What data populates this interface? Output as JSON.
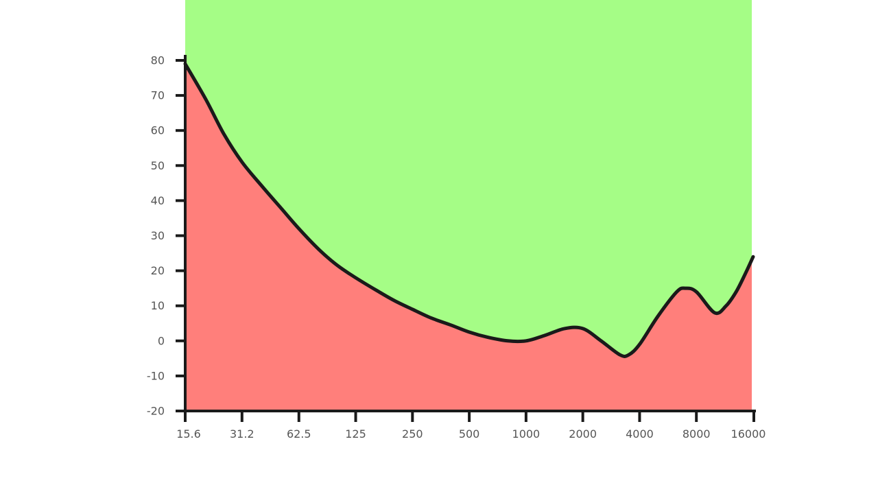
{
  "chart_data": {
    "type": "area",
    "title": "",
    "xlabel": "",
    "ylabel": "",
    "x_scale": "log2",
    "xlim": [
      15.6,
      16000
    ],
    "ylim": [
      -20,
      80
    ],
    "x_ticks": [
      "15.6",
      "31.2",
      "62.5",
      "125",
      "250",
      "500",
      "1000",
      "2000",
      "4000",
      "8000",
      "16000"
    ],
    "y_ticks": [
      "80",
      "70",
      "60",
      "50",
      "40",
      "30",
      "20",
      "10",
      "0",
      "-10",
      "-20"
    ],
    "grid": false,
    "legend": "none",
    "colors": {
      "below_curve": "#ff7f7b",
      "above_curve": "#a5fd86",
      "curve": "#1a1a1a",
      "axis": "#1a1a1a",
      "tick_text": "#555555"
    },
    "series": [
      {
        "x": [
          15.6,
          20,
          25,
          31.2,
          40,
          50,
          62.5,
          80,
          100,
          125,
          160,
          200,
          250,
          315,
          400,
          500,
          630,
          800,
          1000,
          1250,
          1600,
          2000,
          2500,
          3150,
          3500,
          4000,
          5000,
          6300,
          7000,
          8000,
          10000,
          11500,
          13000,
          14500,
          16000
        ],
        "values": [
          79,
          69,
          59,
          51,
          44,
          38,
          32,
          26,
          21.5,
          18,
          14.5,
          11.5,
          9,
          6.5,
          4.5,
          2.5,
          1,
          0,
          0,
          1.5,
          3.5,
          3.5,
          0,
          -4,
          -4,
          -1,
          7,
          14,
          15,
          14,
          8,
          10,
          14,
          19,
          24
        ]
      }
    ]
  }
}
